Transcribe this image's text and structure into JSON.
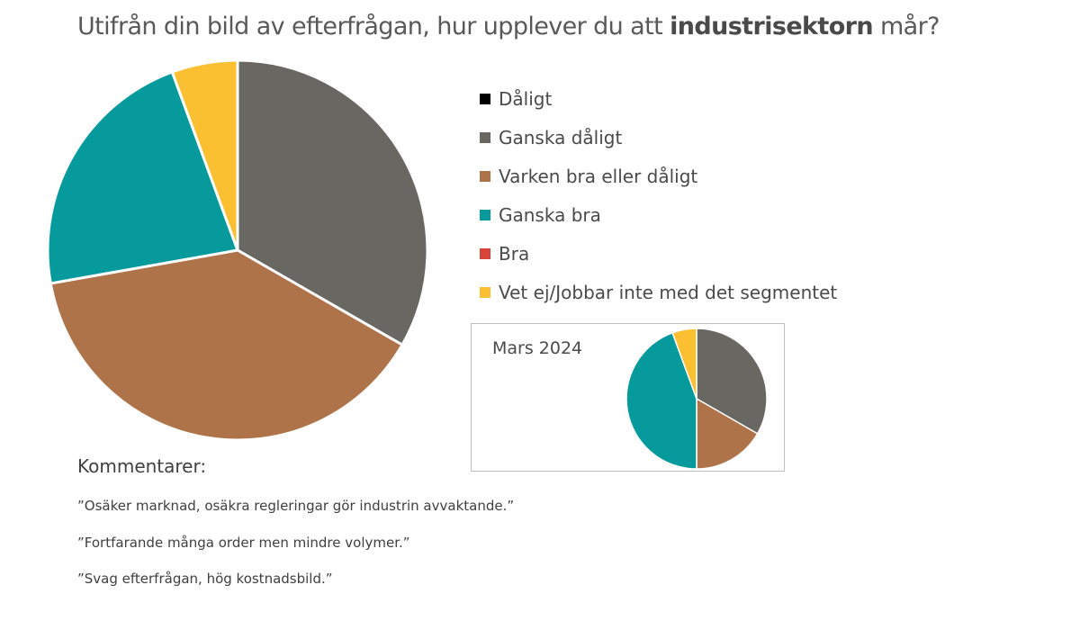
{
  "title": {
    "prefix": "Utifrån din bild av efterfrågan, hur upplever du att ",
    "bold": "industrisektorn",
    "suffix": " mår?"
  },
  "legend": [
    {
      "label": "Dåligt",
      "color": "#000000"
    },
    {
      "label": "Ganska dåligt",
      "color": "#696762"
    },
    {
      "label": "Varken bra eller dåligt",
      "color": "#af7349"
    },
    {
      "label": "Ganska bra",
      "color": "#069a9c"
    },
    {
      "label": "Bra",
      "color": "#d9443a"
    },
    {
      "label": "Vet ej/Jobbar inte med det segmentet",
      "color": "#fbbf32"
    }
  ],
  "comments": {
    "title": "Kommentarer:",
    "items": [
      "”Osäker marknad, osäkra regleringar gör industrin avvaktande.”",
      "”Fortfarande många order men mindre volymer.”",
      "”Svag efterfrågan, hög kostnadsbild.”"
    ]
  },
  "chart_data": [
    {
      "type": "pie",
      "title": "Utifrån din bild av efterfrågan, hur upplever du att industrisektorn mår?",
      "unit": "percent (estimated)",
      "categories": [
        "Dåligt",
        "Ganska dåligt",
        "Varken bra eller dåligt",
        "Ganska bra",
        "Bra",
        "Vet ej/Jobbar inte med det segmentet"
      ],
      "values": [
        0,
        33.3,
        38.9,
        22.2,
        0,
        5.6
      ],
      "colors": [
        "#000000",
        "#696762",
        "#af7349",
        "#069a9c",
        "#d9443a",
        "#fbbf32"
      ],
      "start_angle_deg": 0,
      "direction": "clockwise",
      "legend_position": "right"
    },
    {
      "type": "pie",
      "title": "Mars 2024",
      "unit": "percent (estimated)",
      "categories": [
        "Dåligt",
        "Ganska dåligt",
        "Varken bra eller dåligt",
        "Ganska bra",
        "Bra",
        "Vet ej/Jobbar inte med det segmentet"
      ],
      "values": [
        0,
        33.3,
        16.7,
        44.4,
        0,
        5.6
      ],
      "colors": [
        "#000000",
        "#696762",
        "#af7349",
        "#069a9c",
        "#d9443a",
        "#fbbf32"
      ],
      "start_angle_deg": 0,
      "direction": "clockwise"
    }
  ]
}
